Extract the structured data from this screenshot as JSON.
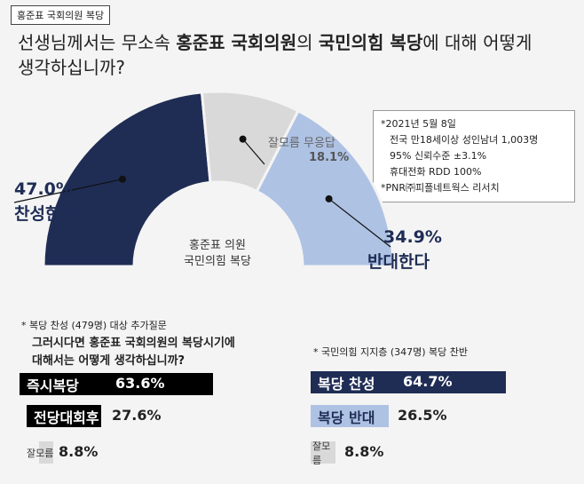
{
  "tag": "홍준표 국회의원 복당",
  "question": {
    "p1": "선생님께서는 무소속 ",
    "b1": "홍준표 국회의원",
    "p2": "의 ",
    "b2": "국민의힘 복당",
    "p3": "에 대해 어떻게",
    "line2": "생각하십니까?"
  },
  "methodology": [
    "*2021년 5월 8일",
    "전국 만18세이상 성인남녀 1,003명",
    "95% 신뢰수준 ±3.1%",
    "휴대전화 RDD 100%",
    "*PNR㈜피플네트웍스 리서치"
  ],
  "center_label": [
    "홍준표 의원",
    "국민의힘 복당"
  ],
  "chart_data": [
    {
      "type": "pie",
      "variant": "half-donut",
      "categories": [
        "찬성한다",
        "잘모름 무응답",
        "반대한다"
      ],
      "values": [
        47.0,
        18.1,
        34.9
      ],
      "value_labels": [
        "47.0%",
        "18.1%",
        "34.9%"
      ],
      "colors": [
        "#1f2d55",
        "#d9d9d9",
        "#aec2e4"
      ]
    },
    {
      "type": "bar",
      "note": "* 복당 찬성 (479명) 대상 추가질문",
      "question_line1": "그러시다면 홍준표 국회의원의 복당시기에",
      "question_line2": "대해서는 어떻게 생각하십니까?",
      "categories": [
        "즉시복당",
        "전당대회후",
        "잘모름"
      ],
      "values": [
        63.6,
        27.6,
        8.8
      ],
      "value_labels": [
        "63.6%",
        "27.6%",
        "8.8%"
      ],
      "colors": [
        "#000000",
        "#000000",
        "#d9d9d9"
      ]
    },
    {
      "type": "bar",
      "note": "* 국민의힘 지지층 (347명) 복당 찬반",
      "categories": [
        "복당 찬성",
        "복당 반대",
        "잘모름"
      ],
      "values": [
        64.7,
        26.5,
        8.8
      ],
      "value_labels": [
        "64.7%",
        "26.5%",
        "8.8%"
      ],
      "colors": [
        "#1f2d55",
        "#aec2e4",
        "#d9d9d9"
      ]
    }
  ]
}
